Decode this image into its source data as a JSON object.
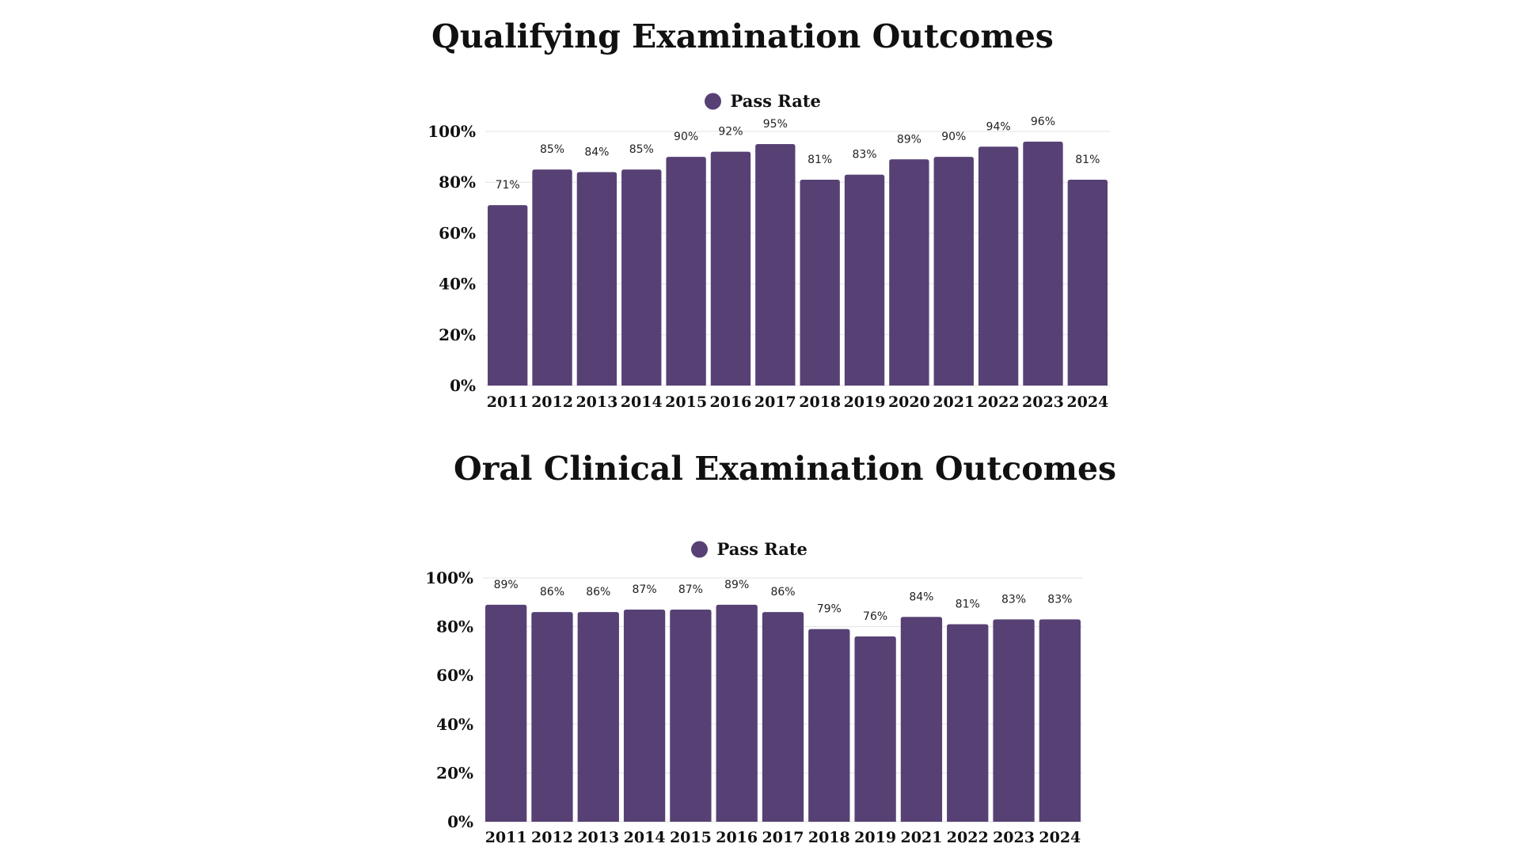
{
  "colors": {
    "bar": "#574174",
    "grid": "#e3e3e3",
    "text": "#111111"
  },
  "chart_data": [
    {
      "type": "bar",
      "title": "Qualifying Examination Outcomes",
      "legend": [
        "Pass Rate"
      ],
      "legend_position": "top-center",
      "categories": [
        "2011",
        "2012",
        "2013",
        "2014",
        "2015",
        "2016",
        "2017",
        "2018",
        "2019",
        "2020",
        "2021",
        "2022",
        "2023",
        "2024"
      ],
      "series": [
        {
          "name": "Pass Rate",
          "values": [
            71,
            85,
            84,
            85,
            90,
            92,
            95,
            81,
            83,
            89,
            90,
            94,
            96,
            81
          ]
        }
      ],
      "data_labels": [
        "71%",
        "85%",
        "84%",
        "85%",
        "90%",
        "92%",
        "95%",
        "81%",
        "83%",
        "89%",
        "90%",
        "94%",
        "96%",
        "81%"
      ],
      "y_ticks": [
        "0%",
        "20%",
        "40%",
        "60%",
        "80%",
        "100%"
      ],
      "ylim": [
        0,
        100
      ],
      "grid": true
    },
    {
      "type": "bar",
      "title": "Oral Clinical Examination Outcomes",
      "legend": [
        "Pass Rate"
      ],
      "legend_position": "top-center",
      "categories": [
        "2011",
        "2012",
        "2013",
        "2014",
        "2015",
        "2016",
        "2017",
        "2018",
        "2019",
        "2021",
        "2022",
        "2023",
        "2024"
      ],
      "series": [
        {
          "name": "Pass Rate",
          "values": [
            89,
            86,
            86,
            87,
            87,
            89,
            86,
            79,
            76,
            84,
            81,
            83,
            83
          ]
        }
      ],
      "data_labels": [
        "89%",
        "86%",
        "86%",
        "87%",
        "87%",
        "89%",
        "86%",
        "79%",
        "76%",
        "84%",
        "81%",
        "83%",
        "83%"
      ],
      "y_ticks": [
        "0%",
        "20%",
        "40%",
        "60%",
        "80%",
        "100%"
      ],
      "ylim": [
        0,
        100
      ],
      "grid": true
    }
  ]
}
